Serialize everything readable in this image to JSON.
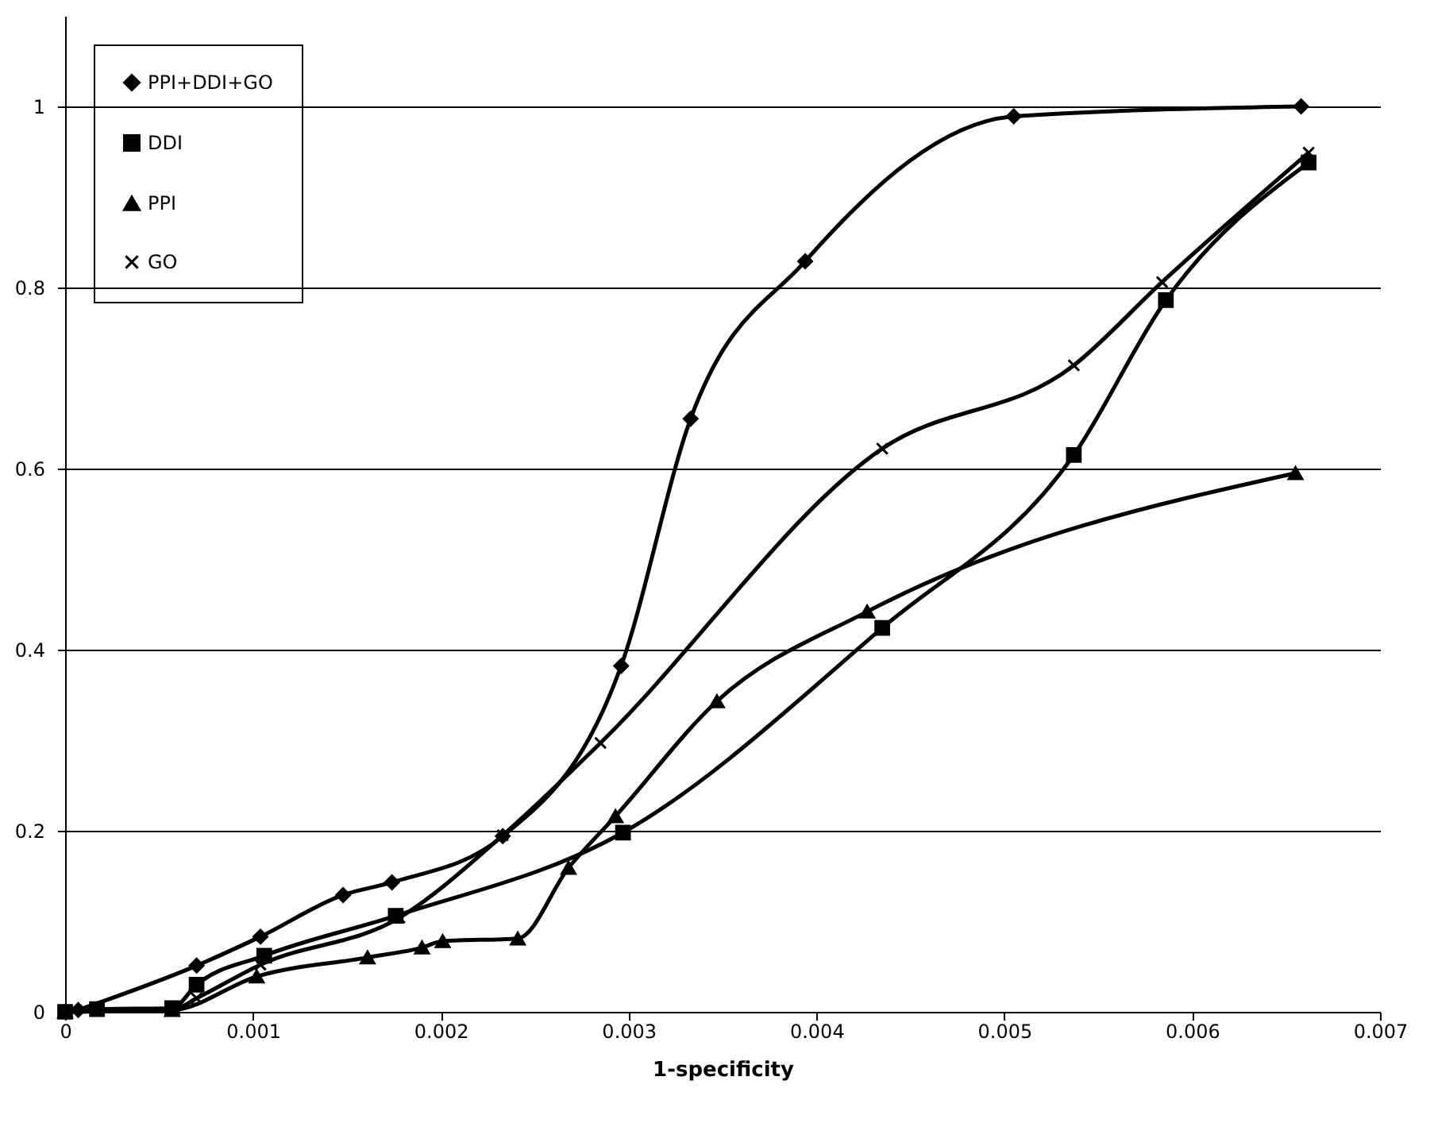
{
  "chart_data": {
    "type": "line",
    "xlabel": "1-specificity",
    "xlim": [
      0,
      0.007
    ],
    "xticks": [
      0,
      0.001,
      0.002,
      0.003,
      0.004,
      0.005,
      0.006,
      0.007
    ],
    "ylim": [
      0,
      1.1
    ],
    "yticks": [
      0,
      0.2,
      0.4,
      0.6,
      0.8,
      1
    ],
    "grid": "y",
    "legend": "top left",
    "line_style": "solid",
    "series": [
      {
        "name": "PPI+DDI+GO",
        "color": "#000000",
        "marker": "diamond",
        "x": [
          7e-05,
          0.0007,
          0.00104,
          0.00148,
          0.00174,
          0.00233,
          0.00296,
          0.00333,
          0.00394,
          0.00505,
          0.00658
        ],
        "values": [
          0.002,
          0.051,
          0.083,
          0.129,
          0.143,
          0.194,
          0.382,
          0.655,
          0.829,
          0.989,
          1.0
        ]
      },
      {
        "name": "DDI",
        "color": "#000000",
        "marker": "square",
        "x": [
          0,
          0.00017,
          0.00057,
          0.0007,
          0.00106,
          0.00176,
          0.00297,
          0.00435,
          0.00537,
          0.00586,
          0.00662
        ],
        "values": [
          0,
          0.003,
          0.004,
          0.03,
          0.062,
          0.106,
          0.198,
          0.424,
          0.615,
          0.786,
          0.938
        ]
      },
      {
        "name": "PPI",
        "color": "#000000",
        "marker": "triangle",
        "x": [
          0,
          0.00057,
          0.00102,
          0.00161,
          0.0019,
          0.00201,
          0.00241,
          0.00268,
          0.00293,
          0.00347,
          0.00427,
          0.00655
        ],
        "values": [
          0,
          0.002,
          0.039,
          0.06,
          0.071,
          0.078,
          0.081,
          0.159,
          0.216,
          0.343,
          0.442,
          0.595
        ]
      },
      {
        "name": "GO",
        "color": "#000000",
        "marker": "cross",
        "x": [
          0,
          0.00057,
          0.0007,
          0.00104,
          0.00178,
          0.00233,
          0.00285,
          0.00435,
          0.00537,
          0.00584,
          0.00662
        ],
        "values": [
          0,
          0.002,
          0.015,
          0.052,
          0.104,
          0.195,
          0.297,
          0.622,
          0.714,
          0.806,
          0.949
        ]
      }
    ]
  }
}
